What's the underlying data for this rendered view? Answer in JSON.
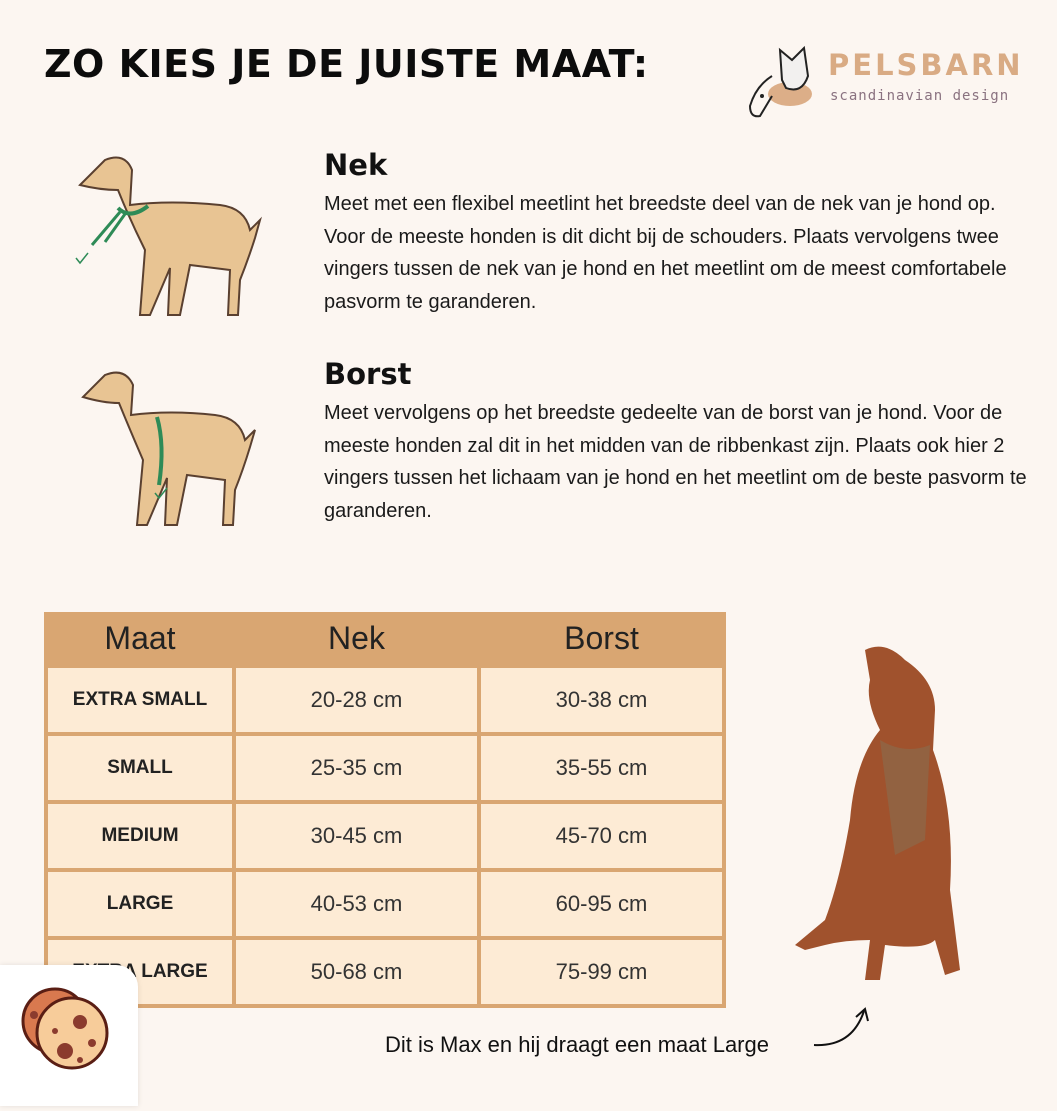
{
  "title": "ZO KIES JE DE JUISTE MAAT:",
  "logo": {
    "brand": "PELSBARN",
    "tagline": "scandinavian design"
  },
  "sections": [
    {
      "heading": "Nek",
      "text": "Meet met een flexibel meetlint het breedste deel van de nek van je hond op. Voor de meeste honden is dit dicht bij de schouders. Plaats vervolgens twee vingers tussen de nek van je hond en het meetlint om de meest comfortabele pasvorm te garanderen."
    },
    {
      "heading": "Borst",
      "text": "Meet vervolgens op het breedste gedeelte van de borst van je hond. Voor de meeste honden zal dit in het midden van de ribbenkast zijn. Plaats ook hier 2 vingers tussen het lichaam van je hond en het meetlint om de beste pasvorm te garanderen."
    }
  ],
  "table": {
    "headers": [
      "Maat",
      "Nek",
      "Borst"
    ],
    "rows": [
      [
        "EXTRA SMALL",
        "20-28 cm",
        "30-38 cm"
      ],
      [
        "SMALL",
        "25-35 cm",
        "35-55 cm"
      ],
      [
        "MEDIUM",
        "30-45 cm",
        "45-70 cm"
      ],
      [
        "LARGE",
        "40-53 cm",
        "60-95 cm"
      ],
      [
        "EXTRA LARGE",
        "50-68 cm",
        "75-99 cm"
      ]
    ]
  },
  "caption": "Dit is Max en hij draagt een maat Large",
  "colors": {
    "background": "#fcf6f1",
    "table_header": "#d9a672",
    "table_cell": "#fdebd5",
    "brand": "#d9ab84",
    "tape": "#2e8b57"
  }
}
